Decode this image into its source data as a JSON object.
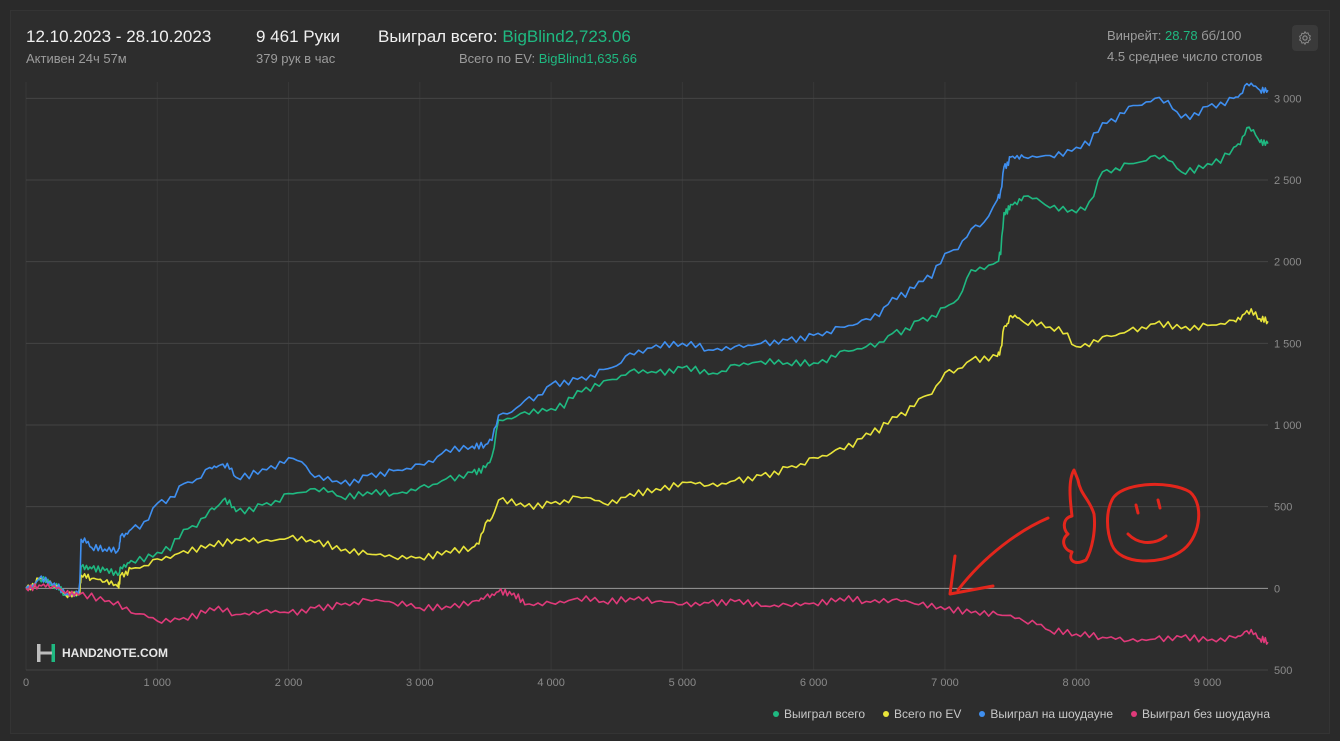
{
  "header": {
    "date_range": "12.10.2023 - 28.10.2023",
    "active_time": "Активен 24ч 57м",
    "hands": "9 461 Руки",
    "hands_per_hour": "379 рук в час",
    "won_total_label": "Выиграл всего:",
    "won_total_value": "BigBlind2,723.06",
    "ev_total_label": "Всего по EV:",
    "ev_total_value": "BigBlind1,635.66",
    "winrate_label": "Винрейт:",
    "winrate_value": "28.78",
    "winrate_unit": "бб/100",
    "avg_tables": "4.5 среднее число столов"
  },
  "logo": {
    "text": "HAND2NOTE.COM"
  },
  "icons": {
    "settings": "gear-icon",
    "logo": "h2n-logo-icon"
  },
  "chart_data": {
    "type": "line",
    "x_range": [
      0,
      9461
    ],
    "y_range": [
      -500,
      3100
    ],
    "x_ticks": [
      0,
      1000,
      2000,
      3000,
      4000,
      5000,
      6000,
      7000,
      8000,
      9000
    ],
    "x_tick_labels": [
      "0",
      "1 000",
      "2 000",
      "3 000",
      "4 000",
      "5 000",
      "6 000",
      "7 000",
      "8 000",
      "9 000"
    ],
    "y_ticks": [
      3000,
      2500,
      2000,
      1500,
      1000,
      500,
      0,
      -500
    ],
    "y_tick_labels": [
      "3 000",
      "2 500",
      "2 000",
      "1 500",
      "1 000",
      "500",
      "0",
      "500"
    ],
    "grid": true,
    "legend_position": "bottom-right",
    "series": [
      {
        "name": "Выиграл всего",
        "color": "#1fb981",
        "x": [
          0,
          100,
          200,
          300,
          400,
          420,
          500,
          600,
          700,
          720,
          800,
          1000,
          1200,
          1400,
          1500,
          1600,
          1800,
          2000,
          2200,
          2400,
          2600,
          2800,
          3000,
          3200,
          3400,
          3500,
          3600,
          3800,
          4000,
          4200,
          4400,
          4600,
          4800,
          5000,
          5200,
          5400,
          5600,
          5800,
          6000,
          6200,
          6400,
          6600,
          6800,
          7000,
          7200,
          7400,
          7450,
          7500,
          7600,
          7800,
          8000,
          8200,
          8400,
          8600,
          8800,
          9000,
          9200,
          9300,
          9400,
          9461
        ],
        "y": [
          0,
          60,
          20,
          -40,
          -30,
          130,
          120,
          110,
          80,
          130,
          170,
          220,
          360,
          480,
          540,
          470,
          510,
          580,
          610,
          560,
          590,
          580,
          620,
          670,
          710,
          740,
          1030,
          1080,
          1100,
          1210,
          1270,
          1330,
          1320,
          1350,
          1310,
          1370,
          1390,
          1380,
          1380,
          1450,
          1480,
          1560,
          1640,
          1720,
          1950,
          2000,
          2300,
          2350,
          2400,
          2330,
          2300,
          2550,
          2600,
          2650,
          2550,
          2600,
          2700,
          2820,
          2730,
          2723
        ]
      },
      {
        "name": "Всего по EV",
        "color": "#e8e43a",
        "x": [
          0,
          100,
          200,
          300,
          400,
          420,
          500,
          600,
          700,
          720,
          800,
          1000,
          1200,
          1400,
          1600,
          1800,
          2000,
          2200,
          2400,
          2600,
          2800,
          3000,
          3200,
          3400,
          3500,
          3600,
          3800,
          4000,
          4200,
          4400,
          4600,
          4800,
          5000,
          5200,
          5400,
          5600,
          5800,
          6000,
          6200,
          6400,
          6600,
          6800,
          7000,
          7200,
          7400,
          7450,
          7500,
          7600,
          7800,
          8000,
          8200,
          8400,
          8600,
          8800,
          9000,
          9200,
          9300,
          9400,
          9461
        ],
        "y": [
          0,
          60,
          20,
          -40,
          -30,
          80,
          60,
          40,
          10,
          80,
          120,
          180,
          230,
          270,
          300,
          290,
          310,
          280,
          230,
          210,
          190,
          190,
          230,
          250,
          400,
          540,
          500,
          520,
          560,
          520,
          580,
          610,
          650,
          630,
          660,
          690,
          740,
          800,
          860,
          950,
          1050,
          1160,
          1320,
          1400,
          1420,
          1600,
          1670,
          1630,
          1600,
          1480,
          1540,
          1580,
          1620,
          1590,
          1610,
          1640,
          1700,
          1650,
          1635
        ]
      },
      {
        "name": "Выиграл на шоудауне",
        "color": "#3f8ff0",
        "x": [
          0,
          100,
          200,
          300,
          400,
          420,
          500,
          600,
          700,
          720,
          800,
          1000,
          1200,
          1400,
          1500,
          1600,
          1800,
          2000,
          2200,
          2400,
          2600,
          2800,
          3000,
          3200,
          3400,
          3500,
          3600,
          3800,
          4000,
          4200,
          4400,
          4600,
          4800,
          5000,
          5200,
          5400,
          5600,
          5800,
          6000,
          6200,
          6400,
          6600,
          6800,
          7000,
          7200,
          7400,
          7450,
          7500,
          7600,
          7800,
          8000,
          8200,
          8400,
          8600,
          8800,
          9000,
          9200,
          9300,
          9400,
          9461
        ],
        "y": [
          0,
          60,
          20,
          -40,
          -30,
          300,
          250,
          240,
          230,
          320,
          360,
          520,
          640,
          740,
          760,
          680,
          730,
          800,
          680,
          640,
          690,
          720,
          760,
          850,
          870,
          880,
          1060,
          1150,
          1250,
          1280,
          1340,
          1440,
          1490,
          1500,
          1460,
          1480,
          1500,
          1520,
          1550,
          1600,
          1650,
          1780,
          1880,
          2050,
          2200,
          2380,
          2580,
          2640,
          2640,
          2650,
          2700,
          2850,
          2950,
          3000,
          2880,
          2950,
          3000,
          3090,
          3050,
          3050
        ]
      },
      {
        "name": "Выиграл без шоудауна",
        "color": "#e03a7a",
        "x": [
          0,
          100,
          200,
          300,
          400,
          600,
          800,
          1000,
          1200,
          1400,
          1600,
          1800,
          2000,
          2200,
          2400,
          2600,
          2800,
          3000,
          3200,
          3400,
          3500,
          3600,
          3700,
          3800,
          4000,
          4200,
          4400,
          4600,
          4800,
          5000,
          5200,
          5400,
          5600,
          5800,
          6000,
          6200,
          6400,
          6600,
          6800,
          7000,
          7200,
          7400,
          7600,
          7800,
          8000,
          8200,
          8400,
          8600,
          8800,
          9000,
          9200,
          9300,
          9400,
          9461
        ],
        "y": [
          0,
          20,
          10,
          -30,
          -40,
          -80,
          -150,
          -200,
          -180,
          -120,
          -160,
          -140,
          -150,
          -120,
          -100,
          -70,
          -90,
          -120,
          -110,
          -80,
          -50,
          -20,
          -40,
          -100,
          -90,
          -60,
          -80,
          -60,
          -80,
          -100,
          -90,
          -80,
          -110,
          -100,
          -90,
          -60,
          -80,
          -70,
          -100,
          -130,
          -150,
          -160,
          -200,
          -260,
          -280,
          -300,
          -320,
          -310,
          -300,
          -320,
          -300,
          -260,
          -310,
          -330
        ]
      }
    ]
  }
}
